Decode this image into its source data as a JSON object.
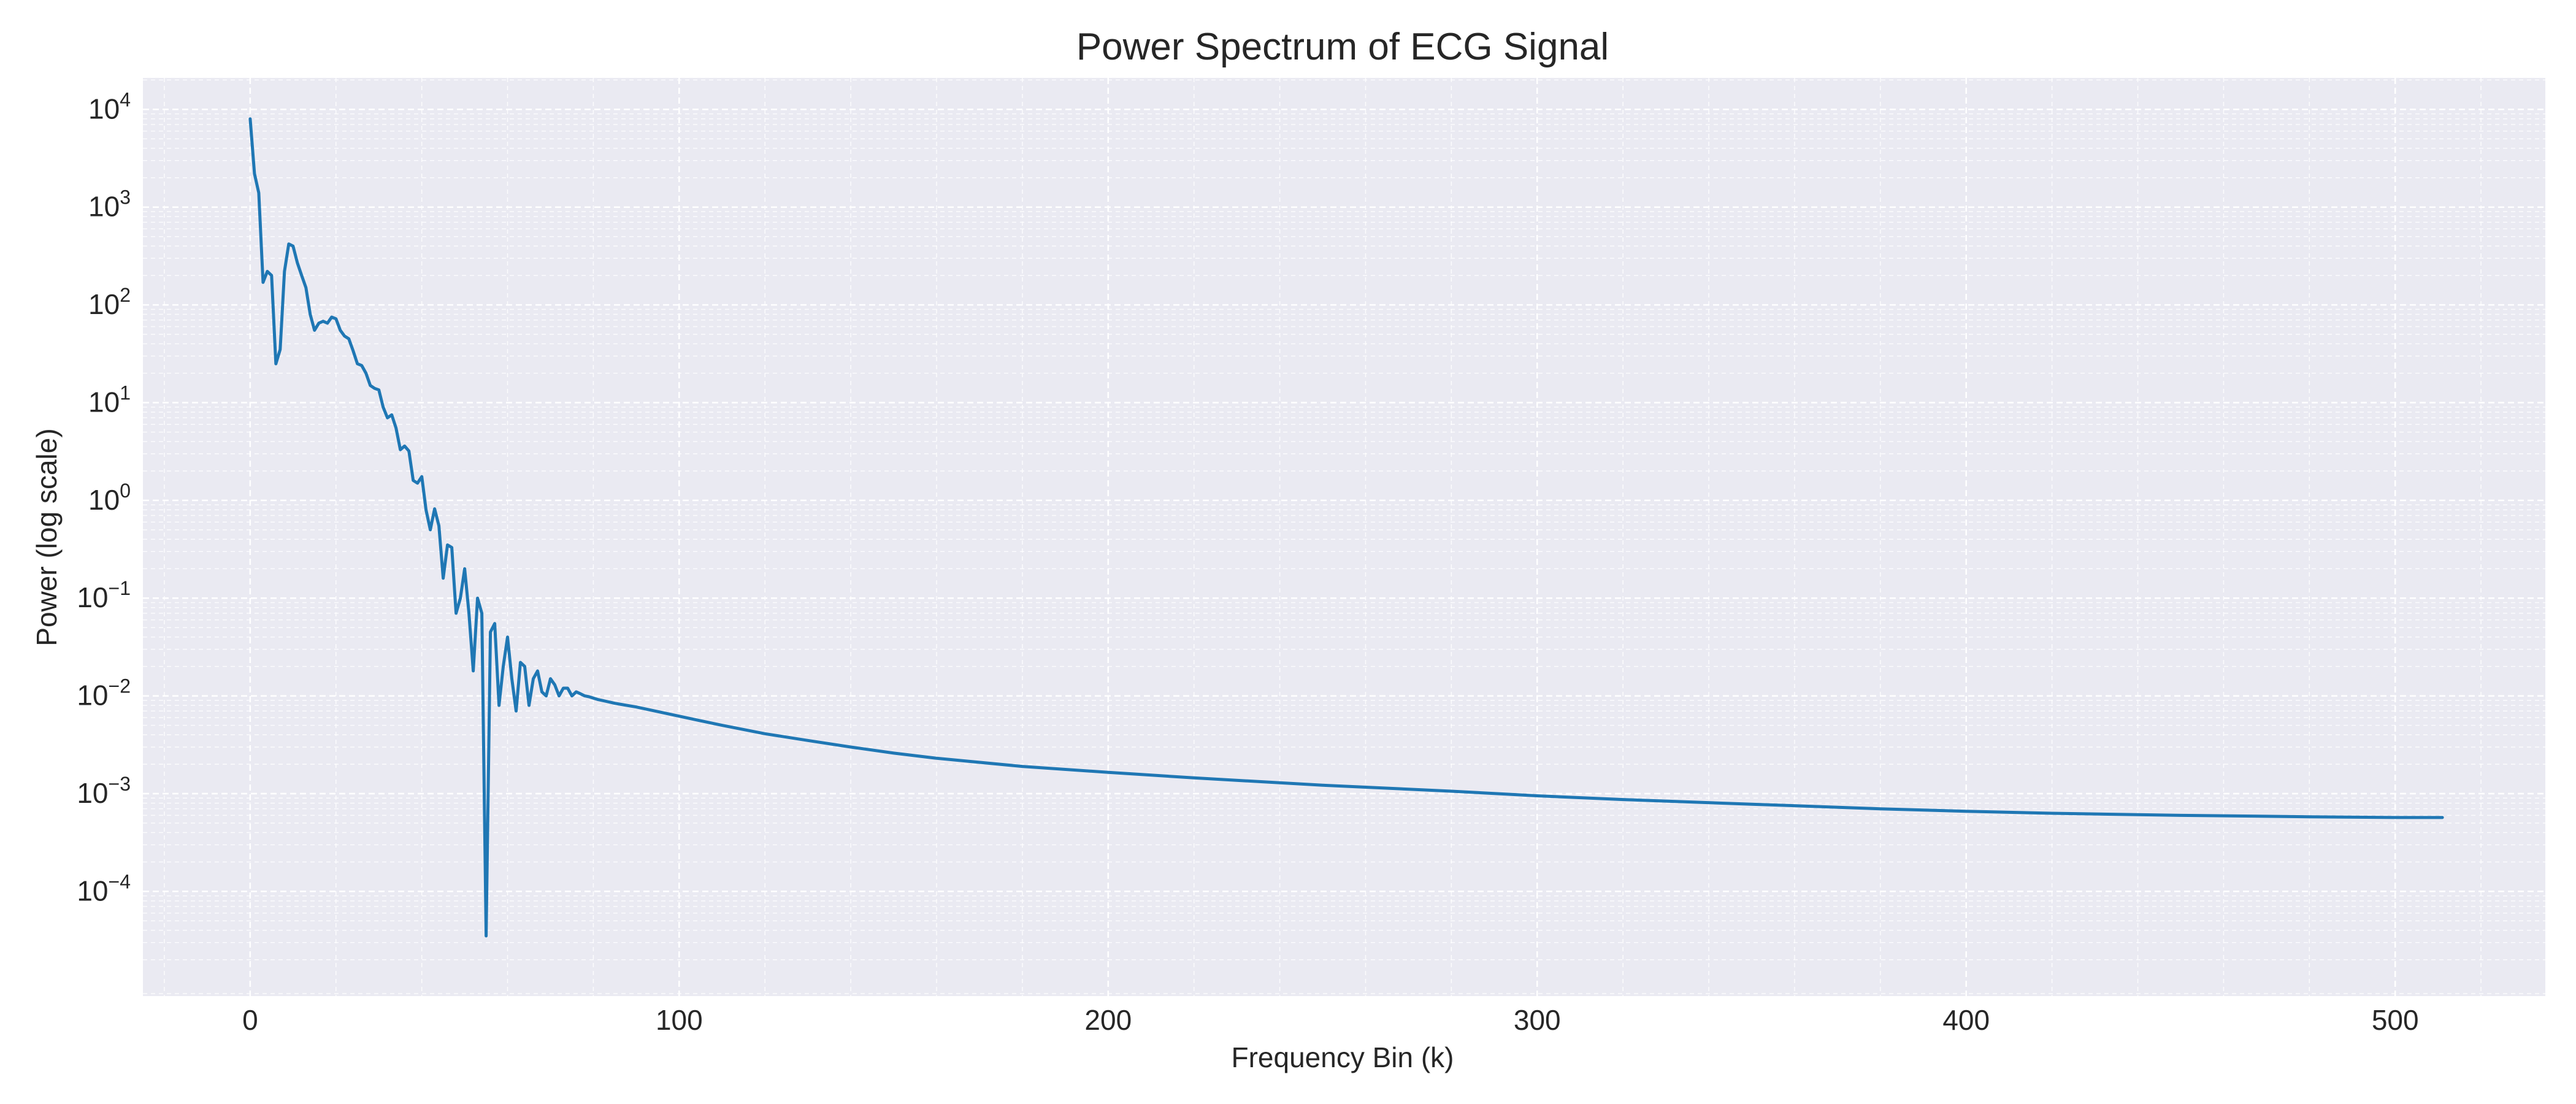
{
  "chart_data": {
    "type": "line",
    "title": "Power Spectrum of ECG Signal",
    "xlabel": "Frequency Bin (k)",
    "ylabel": "Power (log scale)",
    "xlim": [
      -25,
      535
    ],
    "ylim": [
      8.5e-06,
      21000
    ],
    "y_scale": "log",
    "grid": true,
    "grid_style": "dashed",
    "x_ticks": [
      0,
      100,
      200,
      300,
      400,
      500
    ],
    "x_tick_labels": [
      "0",
      "100",
      "200",
      "300",
      "400",
      "500"
    ],
    "y_ticks": [
      {
        "value": 10000,
        "base": "10",
        "exponent": "4"
      },
      {
        "value": 1000,
        "base": "10",
        "exponent": "3"
      },
      {
        "value": 100,
        "base": "10",
        "exponent": "2"
      },
      {
        "value": 10,
        "base": "10",
        "exponent": "1"
      },
      {
        "value": 1,
        "base": "10",
        "exponent": "0"
      },
      {
        "value": 0.1,
        "base": "10",
        "exponent": "−1"
      },
      {
        "value": 0.01,
        "base": "10",
        "exponent": "−2"
      },
      {
        "value": 0.001,
        "base": "10",
        "exponent": "−3"
      },
      {
        "value": 0.0001,
        "base": "10",
        "exponent": "−4"
      }
    ],
    "series": [
      {
        "color": "#1f77b4",
        "x": [
          0,
          1,
          2,
          3,
          4,
          5,
          6,
          7,
          8,
          9,
          10,
          11,
          12,
          13,
          14,
          15,
          16,
          17,
          18,
          19,
          20,
          21,
          22,
          23,
          24,
          25,
          26,
          27,
          28,
          29,
          30,
          31,
          32,
          33,
          34,
          35,
          36,
          37,
          38,
          39,
          40,
          41,
          42,
          43,
          44,
          45,
          46,
          47,
          48,
          49,
          50,
          51,
          52,
          53,
          54,
          55,
          56,
          57,
          58,
          59,
          60,
          61,
          62,
          63,
          64,
          65,
          66,
          67,
          68,
          69,
          70,
          71,
          72,
          73,
          74,
          75,
          76,
          77,
          78,
          79,
          80,
          81,
          82,
          83,
          84,
          85,
          90,
          100,
          110,
          120,
          130,
          140,
          150,
          160,
          180,
          200,
          220,
          250,
          280,
          300,
          320,
          350,
          380,
          400,
          420,
          450,
          480,
          500,
          511
        ],
        "y": [
          8000,
          2200,
          1400,
          170,
          220,
          200,
          25,
          35,
          220,
          420,
          400,
          270,
          200,
          150,
          80,
          55,
          65,
          68,
          65,
          75,
          72,
          55,
          48,
          45,
          34,
          25,
          24,
          20,
          15,
          14,
          13.5,
          9,
          7,
          7.5,
          5.5,
          3.3,
          3.6,
          3.2,
          1.6,
          1.5,
          1.75,
          0.8,
          0.5,
          0.82,
          0.55,
          0.16,
          0.35,
          0.33,
          0.07,
          0.1,
          0.2,
          0.07,
          0.018,
          0.1,
          0.07,
          3.5e-05,
          0.045,
          0.055,
          0.008,
          0.02,
          0.04,
          0.015,
          0.007,
          0.022,
          0.02,
          0.008,
          0.015,
          0.018,
          0.011,
          0.01,
          0.015,
          0.013,
          0.01,
          0.012,
          0.012,
          0.01,
          0.011,
          0.0105,
          0.01,
          0.0098,
          0.0095,
          0.0092,
          0.009,
          0.0088,
          0.0086,
          0.0084,
          0.0077,
          0.0062,
          0.005,
          0.0041,
          0.0035,
          0.003,
          0.0026,
          0.0023,
          0.0019,
          0.00165,
          0.00145,
          0.00122,
          0.00106,
          0.00095,
          0.00087,
          0.00078,
          0.0007,
          0.00066,
          0.00063,
          0.0006,
          0.00058,
          0.00057,
          0.00057
        ]
      }
    ]
  }
}
